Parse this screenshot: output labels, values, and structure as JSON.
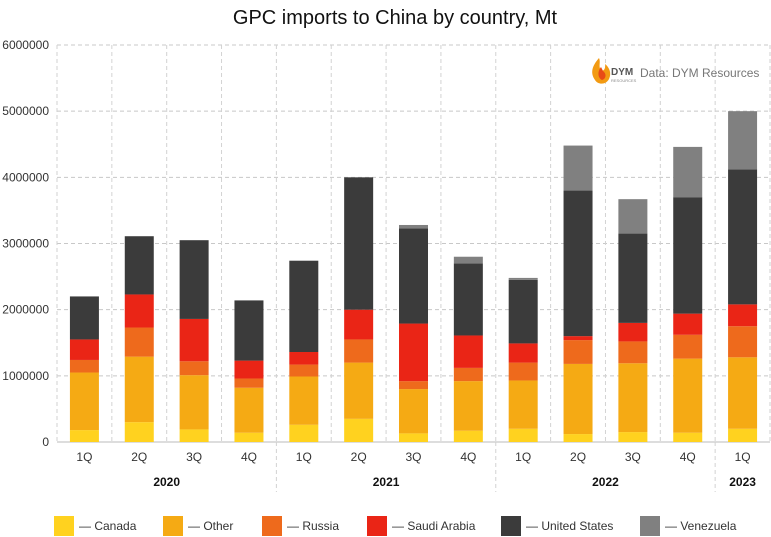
{
  "chart_data": {
    "type": "bar",
    "stacked": true,
    "title": "GPC imports to China by country, Mt",
    "source": "Data: DYM Resources",
    "logo": {
      "text": "DYM",
      "subtext": "RESOURCES",
      "icon": "flame-icon"
    },
    "xlabel": "",
    "ylabel": "",
    "ylim": [
      0,
      6000000
    ],
    "yticks": [
      "0",
      "1000000",
      "2000000",
      "3000000",
      "4000000",
      "5000000",
      "6000000"
    ],
    "grid": true,
    "legend_position": "bottom",
    "categories": [
      "1Q",
      "2Q",
      "3Q",
      "4Q",
      "1Q",
      "2Q",
      "3Q",
      "4Q",
      "1Q",
      "2Q",
      "3Q",
      "4Q",
      "1Q"
    ],
    "groups": [
      {
        "label": "2020",
        "count": 4
      },
      {
        "label": "2021",
        "count": 4
      },
      {
        "label": "2022",
        "count": 4
      },
      {
        "label": "2023",
        "count": 1
      }
    ],
    "series": [
      {
        "name": "Canada",
        "legend": "— Canada",
        "color": "#ffd21f",
        "values": [
          180000,
          300000,
          190000,
          140000,
          260000,
          350000,
          130000,
          170000,
          200000,
          120000,
          150000,
          140000,
          200000
        ]
      },
      {
        "name": "Other",
        "legend": "— Other",
        "color": "#f5aa14",
        "values": [
          870000,
          990000,
          820000,
          680000,
          730000,
          850000,
          670000,
          750000,
          730000,
          1060000,
          1040000,
          1120000,
          1080000
        ]
      },
      {
        "name": "Russia",
        "legend": "— Russia",
        "color": "#ee6a1c",
        "values": [
          190000,
          440000,
          210000,
          140000,
          180000,
          350000,
          120000,
          200000,
          270000,
          360000,
          330000,
          360000,
          470000
        ]
      },
      {
        "name": "Saudi Arabia",
        "legend": "— Saudi Arabia",
        "color": "#ea2516",
        "values": [
          310000,
          500000,
          640000,
          270000,
          190000,
          450000,
          870000,
          490000,
          290000,
          60000,
          280000,
          320000,
          330000
        ]
      },
      {
        "name": "United States",
        "legend": "— United States",
        "color": "#3b3b3b",
        "values": [
          650000,
          880000,
          1190000,
          910000,
          1380000,
          2000000,
          1440000,
          1090000,
          960000,
          2200000,
          1350000,
          1760000,
          2040000
        ]
      },
      {
        "name": "Venezuela",
        "legend": "— Venezuela",
        "color": "#808080",
        "values": [
          0,
          0,
          0,
          0,
          0,
          0,
          50000,
          100000,
          30000,
          680000,
          520000,
          760000,
          880000
        ]
      }
    ]
  }
}
